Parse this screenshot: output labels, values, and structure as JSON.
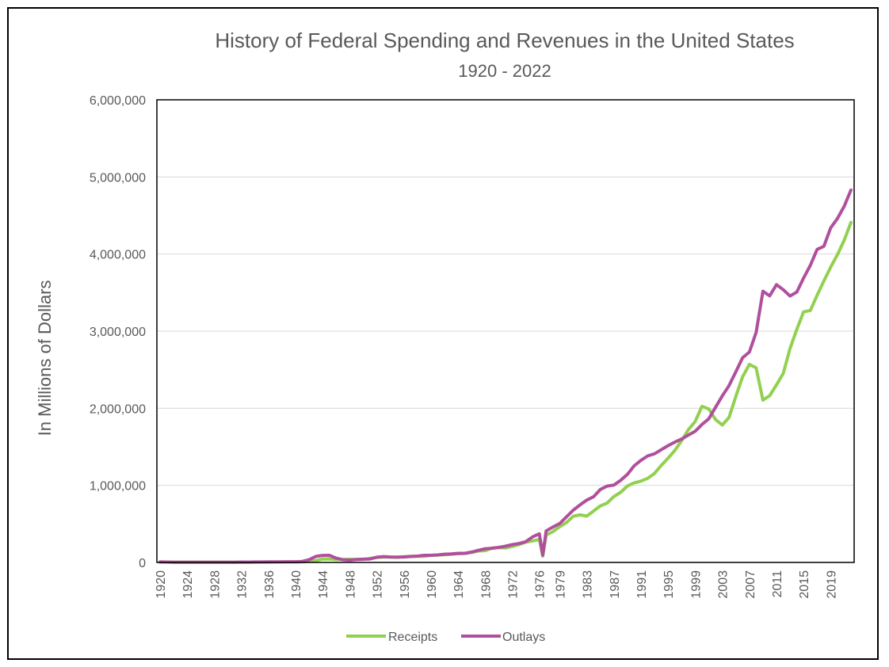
{
  "chart_data": {
    "type": "line",
    "title": "History of Federal Spending and Revenues in the United States",
    "subtitle": "1920 - 2022",
    "ylabel": "In Millions of Dollars",
    "xlabel": "",
    "x_start": 1920,
    "x_end": 2022,
    "x_tick_labels": [
      "1920",
      "1924",
      "1928",
      "1932",
      "1936",
      "1940",
      "1944",
      "1948",
      "1952",
      "1956",
      "1960",
      "1964",
      "1968",
      "1972",
      "1976",
      "1979",
      "1983",
      "1987",
      "1991",
      "1995",
      "1999",
      "2003",
      "2007",
      "2011",
      "2015",
      "2019"
    ],
    "y_tick_labels": [
      "0",
      "1,000,000",
      "2,000,000",
      "3,000,000",
      "4,000,000",
      "5,000,000",
      "6,000,000"
    ],
    "ylim": [
      0,
      6000000
    ],
    "grid": true,
    "legend_position": "bottom",
    "colors": {
      "Receipts": "#92d050",
      "Outlays": "#b0509c"
    },
    "series": [
      {
        "name": "Receipts",
        "points": [
          [
            1920,
            6649
          ],
          [
            1921,
            5571
          ],
          [
            1922,
            4026
          ],
          [
            1923,
            3853
          ],
          [
            1924,
            3871
          ],
          [
            1925,
            3641
          ],
          [
            1926,
            3795
          ],
          [
            1927,
            4013
          ],
          [
            1928,
            3900
          ],
          [
            1929,
            3862
          ],
          [
            1930,
            4058
          ],
          [
            1931,
            3116
          ],
          [
            1932,
            1924
          ],
          [
            1933,
            1997
          ],
          [
            1934,
            2955
          ],
          [
            1935,
            3609
          ],
          [
            1936,
            3923
          ],
          [
            1937,
            5387
          ],
          [
            1938,
            6751
          ],
          [
            1939,
            6295
          ],
          [
            1940,
            6548
          ],
          [
            1941,
            8712
          ],
          [
            1942,
            14634
          ],
          [
            1943,
            24001
          ],
          [
            1944,
            43747
          ],
          [
            1945,
            45159
          ],
          [
            1946,
            39296
          ],
          [
            1947,
            38514
          ],
          [
            1948,
            41560
          ],
          [
            1949,
            39415
          ],
          [
            1950,
            39443
          ],
          [
            1951,
            51616
          ],
          [
            1952,
            66167
          ],
          [
            1953,
            69608
          ],
          [
            1954,
            69701
          ],
          [
            1955,
            65451
          ],
          [
            1956,
            74587
          ],
          [
            1957,
            79990
          ],
          [
            1958,
            79636
          ],
          [
            1959,
            79249
          ],
          [
            1960,
            92492
          ],
          [
            1961,
            94388
          ],
          [
            1962,
            99676
          ],
          [
            1963,
            106560
          ],
          [
            1964,
            112613
          ],
          [
            1965,
            116817
          ],
          [
            1966,
            130835
          ],
          [
            1967,
            148822
          ],
          [
            1968,
            152973
          ],
          [
            1969,
            186882
          ],
          [
            1970,
            192807
          ],
          [
            1971,
            187139
          ],
          [
            1972,
            207309
          ],
          [
            1973,
            230799
          ],
          [
            1974,
            263224
          ],
          [
            1975,
            279090
          ],
          [
            1976,
            298060
          ],
          [
            1976.5,
            81232
          ],
          [
            1977,
            355559
          ],
          [
            1978,
            399561
          ],
          [
            1979,
            463302
          ],
          [
            1980,
            517112
          ],
          [
            1981,
            599272
          ],
          [
            1982,
            617766
          ],
          [
            1983,
            600562
          ],
          [
            1984,
            666438
          ],
          [
            1985,
            734037
          ],
          [
            1986,
            769155
          ],
          [
            1987,
            854287
          ],
          [
            1988,
            909238
          ],
          [
            1989,
            991104
          ],
          [
            1990,
            1031958
          ],
          [
            1991,
            1054988
          ],
          [
            1992,
            1091208
          ],
          [
            1993,
            1154335
          ],
          [
            1994,
            1258566
          ],
          [
            1995,
            1351790
          ],
          [
            1996,
            1453053
          ],
          [
            1997,
            1579232
          ],
          [
            1998,
            1721728
          ],
          [
            1999,
            1827452
          ],
          [
            2000,
            2025191
          ],
          [
            2001,
            1991082
          ],
          [
            2002,
            1853136
          ],
          [
            2003,
            1782314
          ],
          [
            2004,
            1880114
          ],
          [
            2005,
            2153611
          ],
          [
            2006,
            2406869
          ],
          [
            2007,
            2567985
          ],
          [
            2008,
            2523991
          ],
          [
            2009,
            2104989
          ],
          [
            2010,
            2162706
          ],
          [
            2011,
            2303466
          ],
          [
            2012,
            2449990
          ],
          [
            2013,
            2775106
          ],
          [
            2014,
            3021487
          ],
          [
            2015,
            3249886
          ],
          [
            2016,
            3267961
          ],
          [
            2017,
            3465000
          ],
          [
            2018,
            3650000
          ],
          [
            2019,
            3830000
          ],
          [
            2020,
            3990000
          ],
          [
            2021,
            4180000
          ],
          [
            2022,
            4410000
          ]
        ]
      },
      {
        "name": "Outlays",
        "points": [
          [
            1920,
            6358
          ],
          [
            1921,
            5062
          ],
          [
            1922,
            3289
          ],
          [
            1923,
            3140
          ],
          [
            1924,
            2908
          ],
          [
            1925,
            2924
          ],
          [
            1926,
            2930
          ],
          [
            1927,
            2857
          ],
          [
            1928,
            2961
          ],
          [
            1929,
            3127
          ],
          [
            1930,
            3320
          ],
          [
            1931,
            3577
          ],
          [
            1932,
            4659
          ],
          [
            1933,
            4598
          ],
          [
            1934,
            6541
          ],
          [
            1935,
            6412
          ],
          [
            1936,
            8228
          ],
          [
            1937,
            7580
          ],
          [
            1938,
            6840
          ],
          [
            1939,
            9141
          ],
          [
            1940,
            9468
          ],
          [
            1941,
            13653
          ],
          [
            1942,
            35137
          ],
          [
            1943,
            78555
          ],
          [
            1944,
            91304
          ],
          [
            1945,
            92712
          ],
          [
            1946,
            55232
          ],
          [
            1947,
            34496
          ],
          [
            1948,
            29764
          ],
          [
            1949,
            38835
          ],
          [
            1950,
            42562
          ],
          [
            1951,
            45514
          ],
          [
            1952,
            67686
          ],
          [
            1953,
            76101
          ],
          [
            1954,
            70855
          ],
          [
            1955,
            68444
          ],
          [
            1956,
            70640
          ],
          [
            1957,
            76578
          ],
          [
            1958,
            82405
          ],
          [
            1959,
            92098
          ],
          [
            1960,
            92191
          ],
          [
            1961,
            97723
          ],
          [
            1962,
            106821
          ],
          [
            1963,
            111316
          ],
          [
            1964,
            118528
          ],
          [
            1965,
            118228
          ],
          [
            1966,
            134532
          ],
          [
            1967,
            157464
          ],
          [
            1968,
            178134
          ],
          [
            1969,
            183640
          ],
          [
            1970,
            195649
          ],
          [
            1971,
            210172
          ],
          [
            1972,
            230681
          ],
          [
            1973,
            245707
          ],
          [
            1974,
            269359
          ],
          [
            1975,
            332332
          ],
          [
            1976,
            371792
          ],
          [
            1976.5,
            95975
          ],
          [
            1977,
            409218
          ],
          [
            1978,
            458746
          ],
          [
            1979,
            504028
          ],
          [
            1980,
            590941
          ],
          [
            1981,
            678241
          ],
          [
            1982,
            745743
          ],
          [
            1983,
            808364
          ],
          [
            1984,
            851805
          ],
          [
            1985,
            946344
          ],
          [
            1986,
            990382
          ],
          [
            1987,
            1004017
          ],
          [
            1988,
            1064416
          ],
          [
            1989,
            1143743
          ],
          [
            1990,
            1252993
          ],
          [
            1991,
            1324226
          ],
          [
            1992,
            1381529
          ],
          [
            1993,
            1409386
          ],
          [
            1994,
            1461752
          ],
          [
            1995,
            1515742
          ],
          [
            1996,
            1560484
          ],
          [
            1997,
            1601116
          ],
          [
            1998,
            1652458
          ],
          [
            1999,
            1701842
          ],
          [
            2000,
            1788950
          ],
          [
            2001,
            1862846
          ],
          [
            2002,
            2010894
          ],
          [
            2003,
            2159899
          ],
          [
            2004,
            2292841
          ],
          [
            2005,
            2471957
          ],
          [
            2006,
            2655050
          ],
          [
            2007,
            2728686
          ],
          [
            2008,
            2982544
          ],
          [
            2009,
            3517677
          ],
          [
            2010,
            3457079
          ],
          [
            2011,
            3603059
          ],
          [
            2012,
            3537127
          ],
          [
            2013,
            3454647
          ],
          [
            2014,
            3506114
          ],
          [
            2015,
            3688383
          ],
          [
            2016,
            3852612
          ],
          [
            2017,
            4060000
          ],
          [
            2018,
            4100000
          ],
          [
            2019,
            4340000
          ],
          [
            2020,
            4460000
          ],
          [
            2021,
            4620000
          ],
          [
            2022,
            4830000
          ]
        ]
      }
    ]
  }
}
